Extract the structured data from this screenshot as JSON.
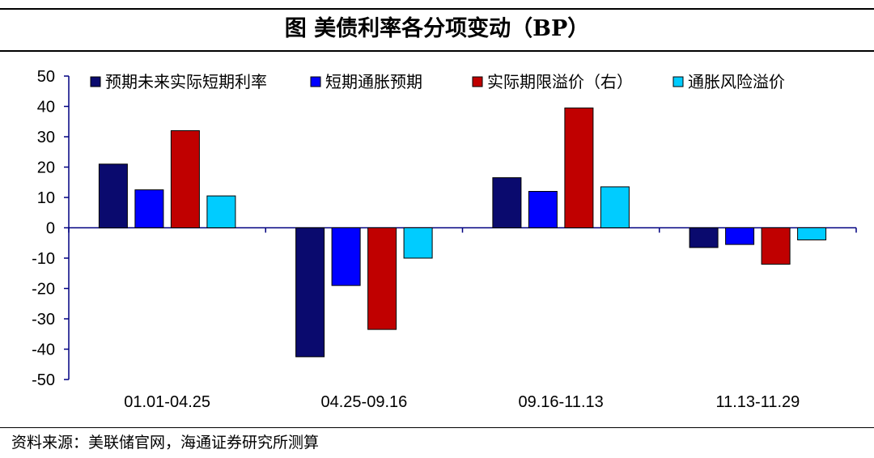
{
  "title": "图  美债利率各分项变动（BP）",
  "source": "资料来源：美联储官网，海通证券研究所测算",
  "chart_data": {
    "type": "bar",
    "title": "图  美债利率各分项变动（BP）",
    "xlabel": "",
    "ylabel": "",
    "categories": [
      "01.01-04.25",
      "04.25-09.16",
      "09.16-11.13",
      "11.13-11.29"
    ],
    "ylim": [
      -50,
      50
    ],
    "yticks": [
      50,
      40,
      30,
      20,
      10,
      0,
      -10,
      -20,
      -30,
      -40,
      -50
    ],
    "legend_position": "top",
    "grid": false,
    "series": [
      {
        "name": "预期未来实际短期利率",
        "color": "#0a0a6e",
        "values": [
          21,
          -42.5,
          16.5,
          -6.5
        ]
      },
      {
        "name": "短期通胀预期",
        "color": "#0000ff",
        "values": [
          12.5,
          -19,
          12,
          -5.5
        ]
      },
      {
        "name": "实际期限溢价（右）",
        "color": "#c00000",
        "values": [
          32,
          -33.5,
          39.5,
          -12
        ]
      },
      {
        "name": "通胀风险溢价",
        "color": "#00ccff",
        "values": [
          10.5,
          -10,
          13.5,
          -4
        ]
      }
    ]
  }
}
